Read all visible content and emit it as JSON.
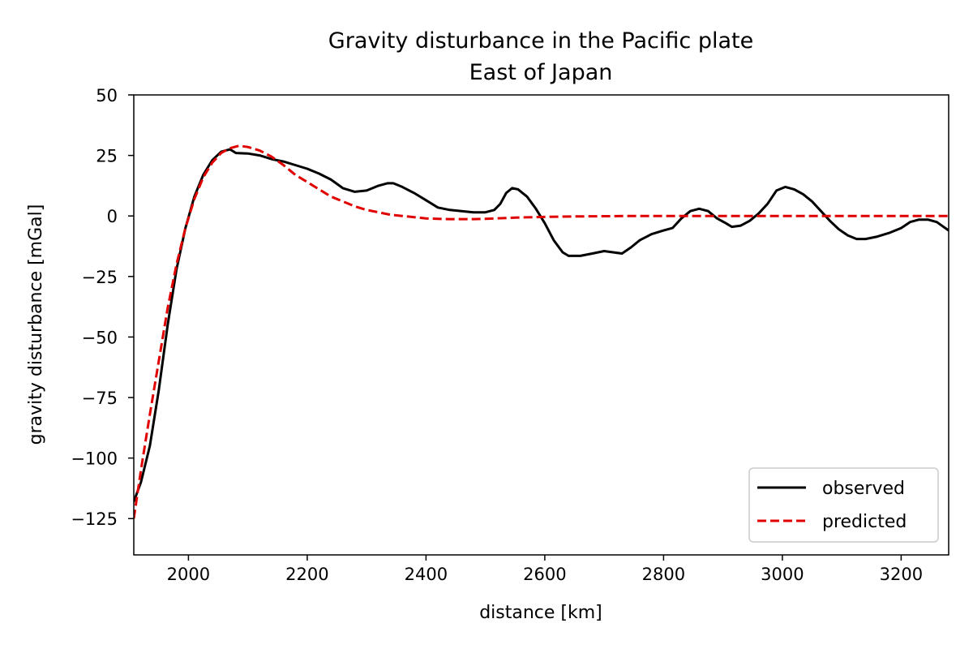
{
  "chart_data": {
    "type": "line",
    "title": [
      "Gravity disturbance in the Pacific plate",
      "East of Japan"
    ],
    "xlabel": "distance [km]",
    "ylabel": "gravity disturbance [mGal]",
    "xlim": [
      1908,
      3280
    ],
    "ylim": [
      -140,
      50
    ],
    "xticks": [
      2000,
      2200,
      2400,
      2600,
      2800,
      3000,
      3200
    ],
    "xtick_labels": [
      "2000",
      "2200",
      "2400",
      "2600",
      "2800",
      "3000",
      "3200"
    ],
    "yticks": [
      50,
      25,
      0,
      -25,
      -50,
      -75,
      -100,
      -125
    ],
    "ytick_labels": [
      "50",
      "25",
      "0",
      "−25",
      "−50",
      "−75",
      "−100",
      "−125"
    ],
    "grid": false,
    "legend_position": "lower-right",
    "series": [
      {
        "name": "observed",
        "color": "#000000",
        "style": "solid",
        "points": [
          [
            1908,
            -118
          ],
          [
            1920,
            -110
          ],
          [
            1935,
            -95
          ],
          [
            1950,
            -72
          ],
          [
            1965,
            -45
          ],
          [
            1980,
            -22
          ],
          [
            1995,
            -5
          ],
          [
            2010,
            8
          ],
          [
            2025,
            17
          ],
          [
            2040,
            23
          ],
          [
            2055,
            26.5
          ],
          [
            2070,
            27.5
          ],
          [
            2080,
            26
          ],
          [
            2100,
            25.8
          ],
          [
            2120,
            25
          ],
          [
            2140,
            23.5
          ],
          [
            2160,
            22.5
          ],
          [
            2180,
            21
          ],
          [
            2200,
            19.5
          ],
          [
            2220,
            17.5
          ],
          [
            2240,
            15
          ],
          [
            2260,
            11.5
          ],
          [
            2280,
            10
          ],
          [
            2300,
            10.5
          ],
          [
            2320,
            12.5
          ],
          [
            2335,
            13.5
          ],
          [
            2345,
            13.5
          ],
          [
            2360,
            12
          ],
          [
            2380,
            9.5
          ],
          [
            2400,
            6.5
          ],
          [
            2420,
            3.5
          ],
          [
            2440,
            2.5
          ],
          [
            2460,
            2
          ],
          [
            2480,
            1.5
          ],
          [
            2500,
            1.5
          ],
          [
            2515,
            2.5
          ],
          [
            2525,
            5
          ],
          [
            2535,
            9.5
          ],
          [
            2545,
            11.5
          ],
          [
            2555,
            11
          ],
          [
            2570,
            8
          ],
          [
            2585,
            3
          ],
          [
            2600,
            -3
          ],
          [
            2615,
            -10
          ],
          [
            2630,
            -15
          ],
          [
            2640,
            -16.5
          ],
          [
            2660,
            -16.5
          ],
          [
            2680,
            -15.5
          ],
          [
            2700,
            -14.5
          ],
          [
            2715,
            -15
          ],
          [
            2730,
            -15.5
          ],
          [
            2745,
            -13
          ],
          [
            2760,
            -10
          ],
          [
            2780,
            -7.5
          ],
          [
            2800,
            -6
          ],
          [
            2815,
            -5
          ],
          [
            2830,
            -1
          ],
          [
            2845,
            2
          ],
          [
            2860,
            3
          ],
          [
            2875,
            2
          ],
          [
            2890,
            -1
          ],
          [
            2905,
            -3
          ],
          [
            2915,
            -4.5
          ],
          [
            2930,
            -4
          ],
          [
            2945,
            -2
          ],
          [
            2960,
            1
          ],
          [
            2975,
            5
          ],
          [
            2990,
            10.5
          ],
          [
            3005,
            12
          ],
          [
            3020,
            11
          ],
          [
            3035,
            9
          ],
          [
            3050,
            6
          ],
          [
            3065,
            2
          ],
          [
            3080,
            -2
          ],
          [
            3095,
            -5.5
          ],
          [
            3110,
            -8
          ],
          [
            3125,
            -9.5
          ],
          [
            3140,
            -9.5
          ],
          [
            3160,
            -8.5
          ],
          [
            3180,
            -7
          ],
          [
            3200,
            -5
          ],
          [
            3215,
            -2.5
          ],
          [
            3230,
            -1.5
          ],
          [
            3245,
            -1.5
          ],
          [
            3260,
            -2.5
          ],
          [
            3280,
            -6
          ]
        ]
      },
      {
        "name": "predicted",
        "color": "#e00000",
        "style": "dashed",
        "points": [
          [
            1908,
            -125
          ],
          [
            1920,
            -105
          ],
          [
            1935,
            -82
          ],
          [
            1950,
            -60
          ],
          [
            1965,
            -38
          ],
          [
            1980,
            -20
          ],
          [
            1995,
            -5
          ],
          [
            2010,
            7
          ],
          [
            2025,
            16
          ],
          [
            2040,
            22
          ],
          [
            2055,
            26
          ],
          [
            2070,
            28
          ],
          [
            2085,
            29
          ],
          [
            2100,
            28.5
          ],
          [
            2120,
            27
          ],
          [
            2140,
            24.5
          ],
          [
            2160,
            21
          ],
          [
            2180,
            17
          ],
          [
            2200,
            14
          ],
          [
            2220,
            11
          ],
          [
            2240,
            8
          ],
          [
            2260,
            6
          ],
          [
            2280,
            4
          ],
          [
            2300,
            2.5
          ],
          [
            2320,
            1.5
          ],
          [
            2340,
            0.5
          ],
          [
            2360,
            0
          ],
          [
            2380,
            -0.5
          ],
          [
            2400,
            -1
          ],
          [
            2420,
            -1.2
          ],
          [
            2440,
            -1.3
          ],
          [
            2460,
            -1.3
          ],
          [
            2480,
            -1.3
          ],
          [
            2500,
            -1.2
          ],
          [
            2520,
            -1
          ],
          [
            2540,
            -0.8
          ],
          [
            2560,
            -0.6
          ],
          [
            2580,
            -0.5
          ],
          [
            2600,
            -0.4
          ],
          [
            2650,
            -0.2
          ],
          [
            2700,
            -0.1
          ],
          [
            2750,
            0
          ],
          [
            2800,
            0
          ],
          [
            2900,
            0
          ],
          [
            3000,
            0
          ],
          [
            3100,
            0
          ],
          [
            3200,
            0
          ],
          [
            3280,
            0
          ]
        ]
      }
    ]
  }
}
